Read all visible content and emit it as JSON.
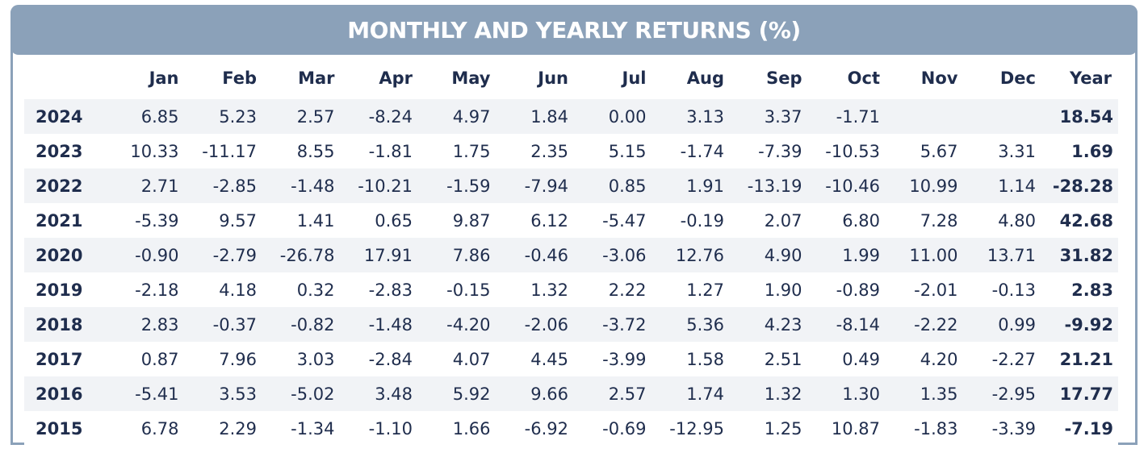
{
  "title": "MONTHLY AND YEARLY RETURNS (%)",
  "colors": {
    "banner": "#8ba1b9",
    "text": "#1f2d4d",
    "row_stripe": "#f1f3f6"
  },
  "chart_data": {
    "type": "table",
    "title": "MONTHLY AND YEARLY RETURNS (%)",
    "columns": [
      "Jan",
      "Feb",
      "Mar",
      "Apr",
      "May",
      "Jun",
      "Jul",
      "Aug",
      "Sep",
      "Oct",
      "Nov",
      "Dec",
      "Year"
    ],
    "rows": [
      {
        "year": "2024",
        "values": [
          "6.85",
          "5.23",
          "2.57",
          "-8.24",
          "4.97",
          "1.84",
          "0.00",
          "3.13",
          "3.37",
          "-1.71",
          "",
          ""
        ],
        "total": "18.54"
      },
      {
        "year": "2023",
        "values": [
          "10.33",
          "-11.17",
          "8.55",
          "-1.81",
          "1.75",
          "2.35",
          "5.15",
          "-1.74",
          "-7.39",
          "-10.53",
          "5.67",
          "3.31"
        ],
        "total": "1.69"
      },
      {
        "year": "2022",
        "values": [
          "2.71",
          "-2.85",
          "-1.48",
          "-10.21",
          "-1.59",
          "-7.94",
          "0.85",
          "1.91",
          "-13.19",
          "-10.46",
          "10.99",
          "1.14"
        ],
        "total": "-28.28"
      },
      {
        "year": "2021",
        "values": [
          "-5.39",
          "9.57",
          "1.41",
          "0.65",
          "9.87",
          "6.12",
          "-5.47",
          "-0.19",
          "2.07",
          "6.80",
          "7.28",
          "4.80"
        ],
        "total": "42.68"
      },
      {
        "year": "2020",
        "values": [
          "-0.90",
          "-2.79",
          "-26.78",
          "17.91",
          "7.86",
          "-0.46",
          "-3.06",
          "12.76",
          "4.90",
          "1.99",
          "11.00",
          "13.71"
        ],
        "total": "31.82"
      },
      {
        "year": "2019",
        "values": [
          "-2.18",
          "4.18",
          "0.32",
          "-2.83",
          "-0.15",
          "1.32",
          "2.22",
          "1.27",
          "1.90",
          "-0.89",
          "-2.01",
          "-0.13"
        ],
        "total": "2.83"
      },
      {
        "year": "2018",
        "values": [
          "2.83",
          "-0.37",
          "-0.82",
          "-1.48",
          "-4.20",
          "-2.06",
          "-3.72",
          "5.36",
          "4.23",
          "-8.14",
          "-2.22",
          "0.99"
        ],
        "total": "-9.92"
      },
      {
        "year": "2017",
        "values": [
          "0.87",
          "7.96",
          "3.03",
          "-2.84",
          "4.07",
          "4.45",
          "-3.99",
          "1.58",
          "2.51",
          "0.49",
          "4.20",
          "-2.27"
        ],
        "total": "21.21"
      },
      {
        "year": "2016",
        "values": [
          "-5.41",
          "3.53",
          "-5.02",
          "3.48",
          "5.92",
          "9.66",
          "2.57",
          "1.74",
          "1.32",
          "1.30",
          "1.35",
          "-2.95"
        ],
        "total": "17.77"
      },
      {
        "year": "2015",
        "values": [
          "6.78",
          "2.29",
          "-1.34",
          "-1.10",
          "1.66",
          "-6.92",
          "-0.69",
          "-12.95",
          "1.25",
          "10.87",
          "-1.83",
          "-3.39"
        ],
        "total": "-7.19"
      }
    ]
  }
}
